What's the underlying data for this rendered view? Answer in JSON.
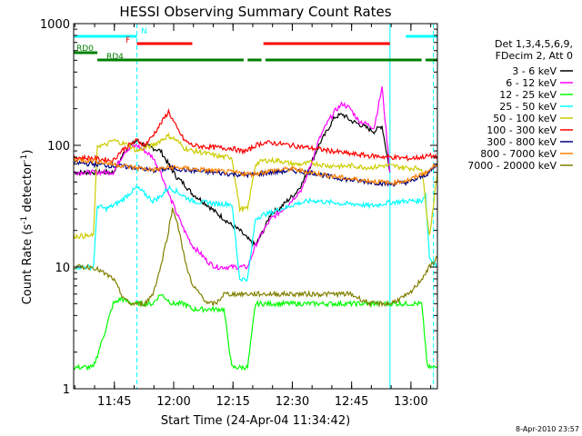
{
  "chart_data": {
    "type": "line",
    "title": "HESSI Observing Summary Count Rates",
    "xlabel": "Start Time (24-Apr-04 11:34:42)",
    "ylabel_main": "Count Rate (s",
    "ylabel_sup1": "-1",
    "ylabel_mid": " detector",
    "ylabel_sup2": "-1",
    "ylabel_end": ")",
    "yscale": "log",
    "ylim": [
      1,
      1000
    ],
    "xlim_minutes": [
      0,
      92
    ],
    "y_ticks": [
      {
        "value": 1,
        "label": "1"
      },
      {
        "value": 10,
        "label": "10"
      },
      {
        "value": 100,
        "label": "100"
      },
      {
        "value": 1000,
        "label": "1000"
      }
    ],
    "x_ticks": [
      {
        "minute": 10.3,
        "label": "11:45"
      },
      {
        "minute": 25.3,
        "label": "12:00"
      },
      {
        "minute": 40.3,
        "label": "12:15"
      },
      {
        "minute": 55.3,
        "label": "12:30"
      },
      {
        "minute": 70.3,
        "label": "12:45"
      },
      {
        "minute": 85.3,
        "label": "13:00"
      }
    ],
    "legend_header": [
      "Det 1,3,4,5,6,9,",
      "FDecim 2, Att 0"
    ],
    "legend_position": "right",
    "series": [
      {
        "name": "3 - 6 keV",
        "color": "#000000",
        "x": [
          0,
          10,
          13,
          16,
          18,
          20,
          22,
          24,
          26,
          28,
          30,
          32,
          34,
          36,
          38,
          40,
          42,
          44,
          46,
          48,
          50,
          52,
          54,
          56,
          58,
          60,
          62,
          64,
          66,
          68,
          70,
          72,
          74,
          76,
          78,
          80
        ],
        "y": [
          60,
          60,
          90,
          110,
          100,
          95,
          90,
          70,
          55,
          48,
          40,
          36,
          32,
          28,
          25,
          22,
          20,
          17,
          15,
          20,
          28,
          30,
          35,
          40,
          50,
          70,
          100,
          130,
          170,
          180,
          160,
          150,
          140,
          130,
          145,
          60
        ]
      },
      {
        "name": "6 - 12 keV",
        "color": "#ff00ff",
        "x": [
          0,
          10,
          13,
          16,
          18,
          20,
          22,
          24,
          26,
          28,
          30,
          32,
          34,
          36,
          38,
          40,
          42,
          44,
          46,
          48,
          50,
          52,
          54,
          56,
          58,
          60,
          62,
          64,
          66,
          68,
          70,
          72,
          74,
          76,
          78,
          80
        ],
        "y": [
          60,
          60,
          90,
          100,
          90,
          80,
          60,
          40,
          28,
          20,
          15,
          13,
          11,
          10,
          10,
          10,
          10,
          10,
          15,
          20,
          25,
          28,
          32,
          38,
          45,
          70,
          110,
          150,
          190,
          220,
          200,
          160,
          150,
          140,
          300,
          60
        ]
      },
      {
        "name": "12 - 25 keV",
        "color": "#00ff00",
        "x": [
          0,
          5,
          8,
          10,
          12,
          15,
          18,
          20,
          22,
          25,
          28,
          30,
          32,
          34,
          36,
          38,
          40,
          44,
          46,
          50,
          55,
          60,
          65,
          70,
          75,
          80,
          85,
          88,
          89.5,
          92
        ],
        "y": [
          1.5,
          1.5,
          3,
          5,
          5.5,
          5,
          5,
          5,
          6,
          5,
          5,
          4.5,
          4.5,
          4.5,
          4.5,
          4.5,
          1.5,
          1.5,
          5,
          5,
          5,
          5,
          5,
          5,
          5,
          5,
          5,
          5,
          1.5,
          1.5
        ]
      },
      {
        "name": "25 - 50 keV",
        "color": "#00ffff",
        "x": [
          0,
          5,
          6,
          8,
          10,
          12,
          14,
          16,
          18,
          20,
          22,
          24,
          26,
          28,
          30,
          32,
          34,
          36,
          38,
          40,
          42,
          44,
          46,
          48,
          50,
          52,
          54,
          56,
          58,
          60,
          62,
          64,
          66,
          68,
          70,
          72,
          74,
          76,
          78,
          80,
          85,
          88,
          89,
          90,
          92
        ],
        "y": [
          10,
          10,
          32,
          30,
          32,
          35,
          40,
          45,
          40,
          35,
          38,
          45,
          42,
          38,
          35,
          34,
          34,
          33,
          33,
          33,
          8,
          8,
          25,
          27,
          28,
          30,
          31,
          33,
          34,
          35,
          35,
          34,
          34,
          33,
          33,
          33,
          32,
          32,
          33,
          34,
          35,
          35,
          40,
          12,
          10
        ]
      },
      {
        "name": "50 - 100 keV",
        "color": "#cccc00",
        "x": [
          0,
          5,
          6,
          8,
          10,
          12,
          14,
          16,
          18,
          20,
          22,
          24,
          26,
          28,
          30,
          32,
          34,
          36,
          38,
          40,
          42,
          44,
          46,
          48,
          50,
          52,
          54,
          56,
          58,
          60,
          62,
          64,
          66,
          68,
          70,
          72,
          74,
          76,
          78,
          80,
          85,
          88,
          89,
          90,
          92
        ],
        "y": [
          18,
          18,
          100,
          100,
          110,
          105,
          100,
          90,
          95,
          100,
          110,
          120,
          110,
          95,
          90,
          88,
          85,
          82,
          80,
          80,
          30,
          30,
          70,
          75,
          75,
          75,
          72,
          70,
          70,
          72,
          70,
          68,
          68,
          67,
          68,
          67,
          66,
          66,
          68,
          68,
          65,
          65,
          35,
          18,
          60
        ]
      },
      {
        "name": "100 - 300 keV",
        "color": "#ff0000",
        "x": [
          0,
          5,
          10,
          12,
          14,
          16,
          18,
          20,
          22,
          24,
          26,
          28,
          30,
          32,
          34,
          36,
          38,
          40,
          42,
          44,
          46,
          48,
          50,
          55,
          60,
          65,
          70,
          75,
          80,
          85,
          88,
          90,
          92
        ],
        "y": [
          80,
          78,
          75,
          90,
          100,
          110,
          100,
          120,
          150,
          190,
          140,
          110,
          100,
          98,
          97,
          96,
          95,
          95,
          90,
          90,
          100,
          105,
          105,
          100,
          95,
          90,
          85,
          82,
          80,
          78,
          80,
          82,
          80
        ]
      },
      {
        "name": "300 - 800 keV",
        "color": "#000080",
        "x": [
          0,
          5,
          10,
          15,
          20,
          25,
          30,
          35,
          40,
          45,
          50,
          55,
          60,
          65,
          70,
          75,
          80,
          85,
          88,
          90,
          92
        ],
        "y": [
          72,
          70,
          68,
          66,
          62,
          65,
          62,
          60,
          58,
          57,
          60,
          62,
          60,
          55,
          52,
          50,
          48,
          50,
          55,
          60,
          70
        ]
      },
      {
        "name": "800 - 7000 keV",
        "color": "#ff8000",
        "x": [
          0,
          5,
          10,
          15,
          20,
          25,
          30,
          35,
          40,
          45,
          50,
          55,
          60,
          65,
          70,
          75,
          80,
          85,
          88,
          90,
          92
        ],
        "y": [
          76,
          75,
          70,
          66,
          63,
          66,
          64,
          62,
          60,
          58,
          62,
          64,
          60,
          56,
          53,
          51,
          49,
          52,
          58,
          62,
          72
        ]
      },
      {
        "name": "7000 - 20000 keV",
        "color": "#808000",
        "x": [
          0,
          5,
          10,
          12,
          14,
          16,
          18,
          20,
          22,
          24,
          25,
          26,
          28,
          30,
          32,
          34,
          36,
          38,
          40,
          45,
          50,
          55,
          60,
          65,
          70,
          75,
          80,
          85,
          88,
          90,
          92
        ],
        "y": [
          10,
          10,
          8,
          6,
          5,
          5,
          5,
          6,
          10,
          20,
          30,
          25,
          12,
          7,
          6,
          5,
          5,
          6,
          6,
          6,
          6,
          6,
          6,
          6,
          6,
          5,
          5,
          6,
          8,
          10,
          12
        ]
      }
    ],
    "shaded_periods": {
      "N": [
        0,
        16
      ],
      "F": [
        16,
        30
      ],
      "RD0": [
        0,
        6
      ],
      "RD4": [
        6,
        44
      ]
    },
    "top_bars": [
      {
        "label": "N",
        "color": "#00ffff",
        "segments": [
          [
            0,
            16
          ],
          [
            84,
            92
          ]
        ]
      },
      {
        "label": "F",
        "color": "#ff0000",
        "segments": [
          [
            16,
            30
          ],
          [
            48,
            80
          ]
        ]
      },
      {
        "label": "RD0",
        "color": "#008000",
        "segments": [
          [
            0,
            6
          ]
        ]
      },
      {
        "label": "RD4",
        "color": "#008000",
        "segments": [
          [
            6,
            43
          ],
          [
            44,
            47.5
          ],
          [
            48.5,
            88
          ],
          [
            89,
            92
          ]
        ]
      }
    ],
    "vertical_lines": [
      {
        "minute": 16,
        "color": "#00ffff",
        "style": "dashed"
      },
      {
        "minute": 80,
        "color": "#00ffff",
        "style": "solid"
      },
      {
        "minute": 91,
        "color": "#00ffff",
        "style": "dashed"
      }
    ]
  },
  "footer_timestamp": "8-Apr-2010 23:57",
  "colors": {
    "background": "#ffffff",
    "axes": "#000000"
  }
}
